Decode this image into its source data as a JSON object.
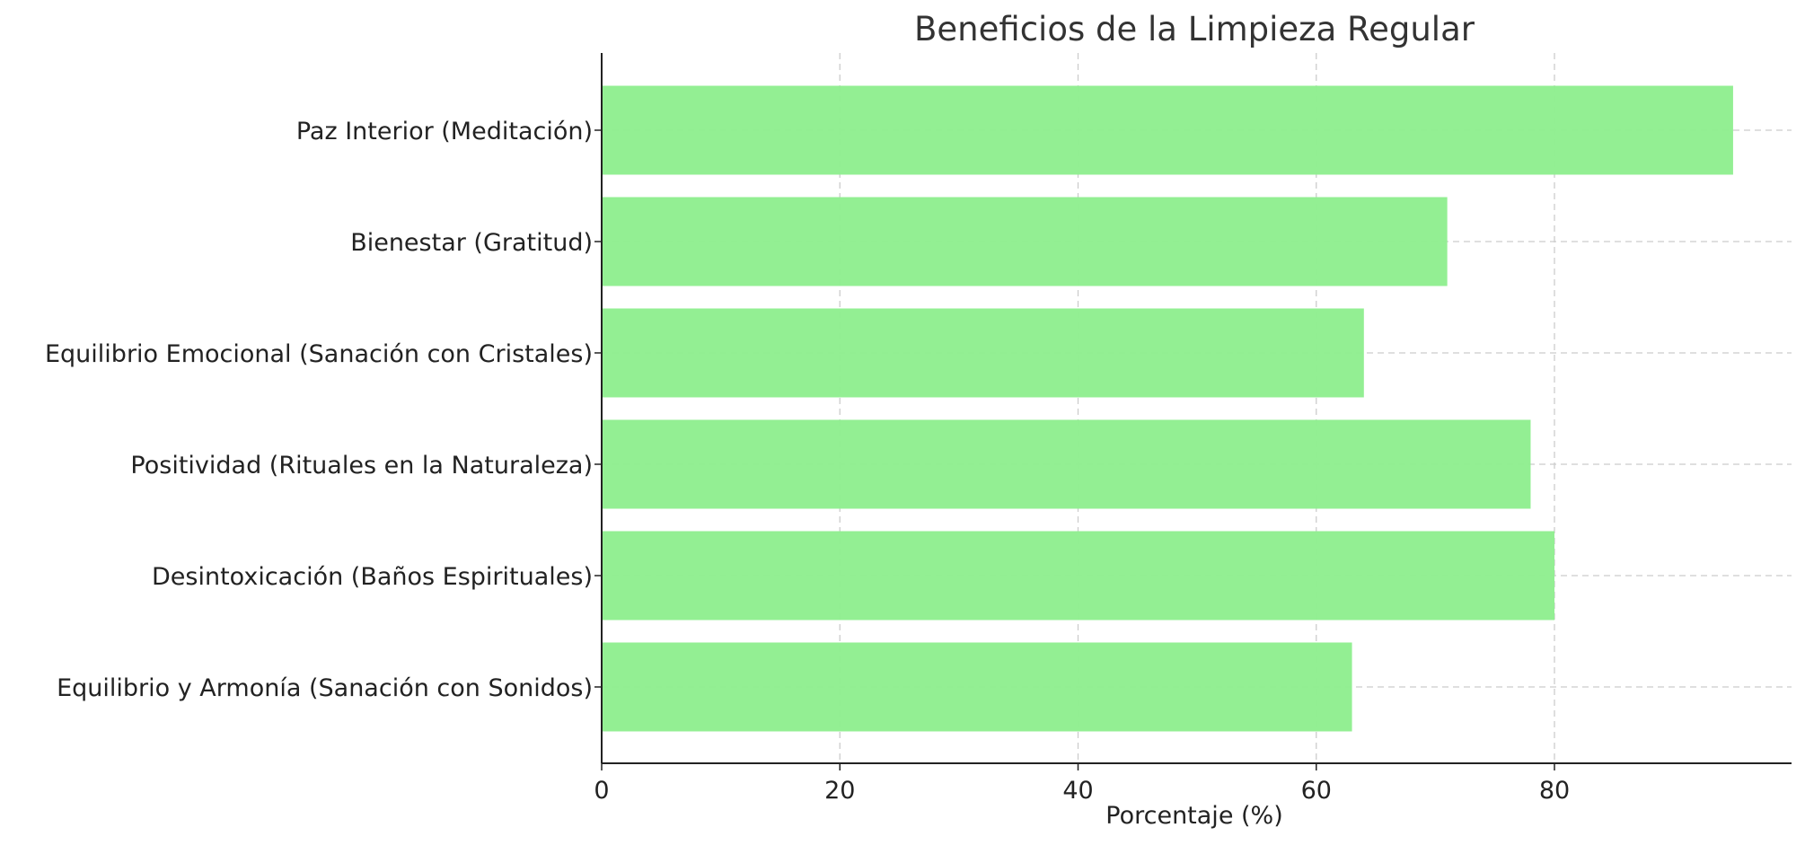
{
  "chart_data": {
    "type": "bar",
    "orientation": "horizontal",
    "title": "Beneficios de la Limpieza Regular",
    "xlabel": "Porcentaje (%)",
    "ylabel": "",
    "categories": [
      "Paz Interior (Meditación)",
      "Bienestar (Gratitud)",
      "Equilibrio Emocional (Sanación con Cristales)",
      "Positividad (Rituales en la Naturaleza)",
      "Desintoxicación (Baños Espirituales)",
      "Equilibrio y Armonía (Sanación con Sonidos)"
    ],
    "values": [
      95,
      71,
      64,
      78,
      80,
      63
    ],
    "xlim": [
      0,
      100
    ],
    "xticks": [
      0,
      20,
      40,
      60,
      80
    ],
    "grid": true,
    "legend": "none",
    "bar_color": "#90ee90"
  }
}
